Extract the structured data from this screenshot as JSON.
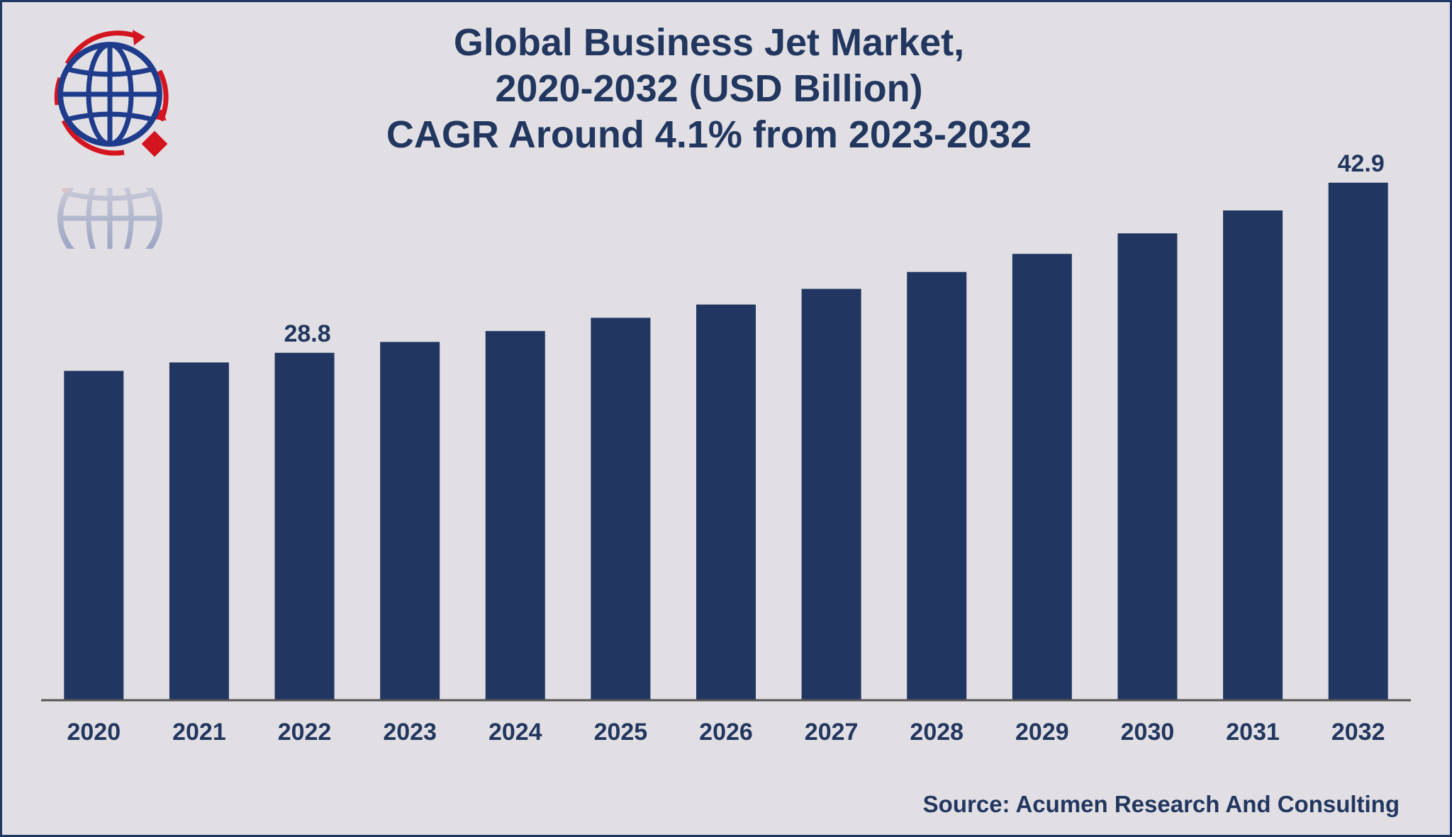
{
  "header": {
    "title_line1": "Global Business Jet Market,",
    "title_line2": "2020-2032 (USD Billion)",
    "title_line3": "CAGR Around 4.1% from 2023-2032"
  },
  "source": "Source: Acumen Research And Consulting",
  "logo": {
    "icon": "globe-icon",
    "colors": {
      "globe": "#1f3c8c",
      "accent": "#d4141e"
    }
  },
  "colors": {
    "bar": "#213762",
    "background": "#e1dfe3",
    "border": "#1f3764",
    "axis": "#555555",
    "text": "#22375f"
  },
  "chart_data": {
    "type": "bar",
    "categories": [
      "2020",
      "2021",
      "2022",
      "2023",
      "2024",
      "2025",
      "2026",
      "2027",
      "2028",
      "2029",
      "2030",
      "2031",
      "2032"
    ],
    "values": [
      27.3,
      28.0,
      28.8,
      29.7,
      30.6,
      31.7,
      32.8,
      34.1,
      35.5,
      37.0,
      38.7,
      40.6,
      42.9
    ],
    "data_labels": {
      "2022": "28.8",
      "2032": "42.9"
    },
    "xlabel": "",
    "ylabel": "",
    "ylim": [
      0,
      46
    ],
    "grid": false,
    "legend": "none"
  }
}
